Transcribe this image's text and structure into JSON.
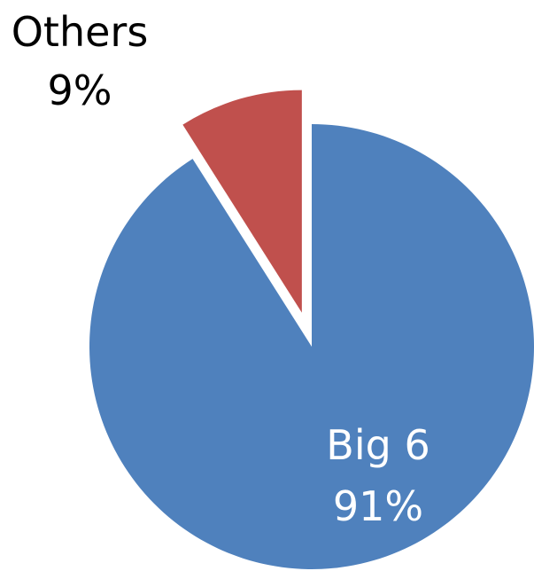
{
  "chart_data": {
    "type": "pie",
    "exploded": true,
    "slices": [
      {
        "name": "Big 6",
        "value": 91,
        "label": "91%",
        "color": "#4f81bd"
      },
      {
        "name": "Others",
        "value": 9,
        "label": "9%",
        "color": "#c0504d"
      }
    ],
    "title": "",
    "legend": "none"
  }
}
